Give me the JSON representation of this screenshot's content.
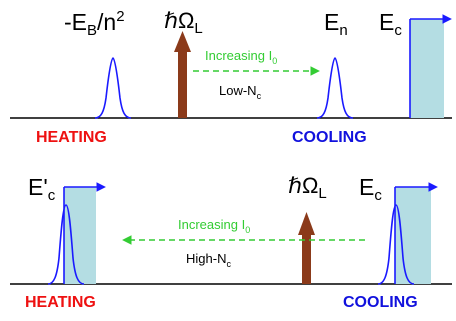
{
  "colors": {
    "curve": "#1a1aff",
    "arrow": "#8b3a1a",
    "dashed": "#33cc33",
    "heating": "#ee1111",
    "cooling": "#1111dd",
    "fill": "#b4dde3",
    "axis": "#000000"
  },
  "top_panel": {
    "label_left": "-E",
    "label_left_sub": "B",
    "label_left_tail": "/n",
    "label_left_sup": "2",
    "photon_hbar": "ℏ",
    "photon_omega": "Ω",
    "photon_sub": "L",
    "label_en": "E",
    "label_en_sub": "n",
    "label_ec": "E",
    "label_ec_sub": "c",
    "increasing": "Increasing I",
    "increasing_sub": "0",
    "regime": "Low-N",
    "regime_sub": "c",
    "heating": "HEATING",
    "cooling": "COOLING"
  },
  "bottom_panel": {
    "label_ecp": "E'",
    "label_ecp_sub": "c",
    "photon_hbar": "ℏ",
    "photon_omega": "Ω",
    "photon_sub": "L",
    "label_ec": "E",
    "label_ec_sub": "c",
    "increasing": "Increasing I",
    "increasing_sub": "0",
    "regime": "High-N",
    "regime_sub": "c",
    "heating": "HEATING",
    "cooling": "COOLING"
  }
}
